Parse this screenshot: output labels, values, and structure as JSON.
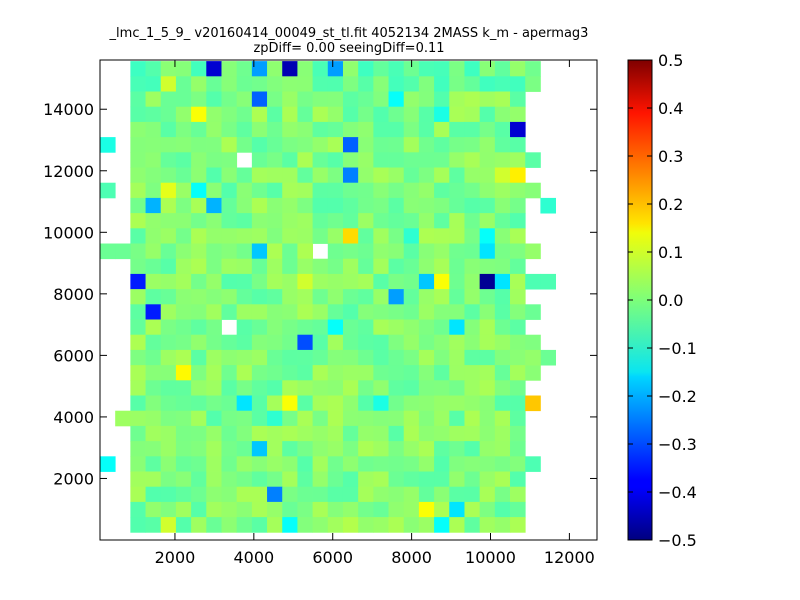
{
  "chart_data": {
    "type": "heatmap",
    "title": "_lmc_1_5_9_ v20160414_00049_st_tl.fit 4052134 2MASS k_m - apermag3",
    "subtitle": "zpDiff= 0.00 seeingDiff=0.11",
    "xlabel": "",
    "ylabel": "",
    "xlim": [
      100,
      12700
    ],
    "ylim": [
      0,
      15600
    ],
    "x_ticks": [
      2000,
      4000,
      6000,
      8000,
      10000,
      12000
    ],
    "x_tick_labels": [
      "2000",
      "4000",
      "6000",
      "8000",
      "10000",
      "12000"
    ],
    "y_ticks": [
      2000,
      4000,
      6000,
      8000,
      10000,
      12000,
      14000
    ],
    "y_tick_labels": [
      "2000",
      "4000",
      "6000",
      "8000",
      "10000",
      "12000",
      "14000"
    ],
    "colorbar": {
      "colormap": "jet",
      "range": [
        -0.5,
        0.5
      ],
      "ticks": [
        -0.5,
        -0.4,
        -0.3,
        -0.2,
        -0.1,
        0.0,
        0.1,
        0.2,
        0.3,
        0.4,
        0.5
      ],
      "tick_labels": [
        "−0.5",
        "−0.4",
        "−0.3",
        "−0.2",
        "−0.1",
        "0.0",
        "0.1",
        "0.2",
        "0.3",
        "0.4",
        "0.5"
      ]
    },
    "grid": false,
    "cell_size": {
      "x": 385,
      "y": 494
    },
    "nx": 32,
    "ny": 31,
    "row_defaults": [
      {
        "row": 30,
        "start_col": 2,
        "end_col": 28,
        "mean": -0.02
      },
      {
        "row": 29,
        "start_col": 2,
        "end_col": 28,
        "mean": -0.02
      },
      {
        "row": 28,
        "start_col": 2,
        "end_col": 27,
        "mean": 0.0
      },
      {
        "row": 27,
        "start_col": 2,
        "end_col": 27,
        "mean": 0.0
      },
      {
        "row": 26,
        "start_col": 2,
        "end_col": 27,
        "mean": 0.0
      },
      {
        "row": 25,
        "start_col": 2,
        "end_col": 27,
        "mean": 0.0
      },
      {
        "row": 24,
        "start_col": 2,
        "end_col": 28,
        "mean": 0.0
      },
      {
        "row": 23,
        "start_col": 2,
        "end_col": 27,
        "mean": 0.0
      },
      {
        "row": 22,
        "start_col": 2,
        "end_col": 28,
        "mean": 0.0
      },
      {
        "row": 21,
        "start_col": 2,
        "end_col": 27,
        "mean": 0.0
      },
      {
        "row": 20,
        "start_col": 2,
        "end_col": 27,
        "mean": 0.0
      },
      {
        "row": 19,
        "start_col": 2,
        "end_col": 27,
        "mean": 0.0
      },
      {
        "row": 18,
        "start_col": 2,
        "end_col": 28,
        "mean": 0.0
      },
      {
        "row": 17,
        "start_col": 2,
        "end_col": 27,
        "mean": 0.0
      },
      {
        "row": 16,
        "start_col": 2,
        "end_col": 27,
        "mean": 0.0
      },
      {
        "row": 15,
        "start_col": 2,
        "end_col": 27,
        "mean": 0.0
      },
      {
        "row": 14,
        "start_col": 2,
        "end_col": 27,
        "mean": 0.0
      },
      {
        "row": 13,
        "start_col": 2,
        "end_col": 27,
        "mean": 0.0
      },
      {
        "row": 12,
        "start_col": 2,
        "end_col": 28,
        "mean": 0.0
      },
      {
        "row": 11,
        "start_col": 2,
        "end_col": 27,
        "mean": 0.0
      },
      {
        "row": 10,
        "start_col": 2,
        "end_col": 28,
        "mean": 0.0
      },
      {
        "row": 9,
        "start_col": 2,
        "end_col": 27,
        "mean": 0.0
      },
      {
        "row": 8,
        "start_col": 2,
        "end_col": 27,
        "mean": 0.0
      },
      {
        "row": 7,
        "start_col": 1,
        "end_col": 27,
        "mean": 0.0
      },
      {
        "row": 6,
        "start_col": 2,
        "end_col": 27,
        "mean": 0.0
      },
      {
        "row": 5,
        "start_col": 2,
        "end_col": 27,
        "mean": 0.0
      },
      {
        "row": 4,
        "start_col": 2,
        "end_col": 27,
        "mean": 0.0
      },
      {
        "row": 3,
        "start_col": 2,
        "end_col": 27,
        "mean": 0.0
      },
      {
        "row": 2,
        "start_col": 2,
        "end_col": 27,
        "mean": 0.0
      },
      {
        "row": 1,
        "start_col": 2,
        "end_col": 27,
        "mean": 0.0
      },
      {
        "row": 0,
        "start_col": 2,
        "end_col": 27,
        "mean": 0.0
      }
    ],
    "special_cells": [
      {
        "col": 0,
        "row": 25,
        "value": -0.1
      },
      {
        "col": 0,
        "row": 22,
        "value": -0.05
      },
      {
        "col": 0,
        "row": 18,
        "value": -0.02
      },
      {
        "col": 1,
        "row": 18,
        "value": -0.02
      },
      {
        "col": 0,
        "row": 4,
        "value": -0.12
      },
      {
        "col": 29,
        "row": 21,
        "value": -0.08
      },
      {
        "col": 29,
        "row": 16,
        "value": -0.05
      },
      {
        "col": 28,
        "row": 16,
        "value": -0.05
      },
      {
        "col": 29,
        "row": 11,
        "value": -0.02
      },
      {
        "col": 28,
        "row": 11,
        "value": 0.02
      },
      {
        "col": 28,
        "row": 8,
        "value": 0.18
      },
      {
        "col": 28,
        "row": 4,
        "value": -0.05
      },
      {
        "col": 28,
        "row": 14,
        "value": -0.02
      },
      {
        "col": 28,
        "row": 12,
        "value": 0.0
      },
      {
        "col": 3,
        "row": 14,
        "value": -0.35
      },
      {
        "col": 7,
        "row": 30,
        "value": -0.42
      },
      {
        "col": 12,
        "row": 30,
        "value": -0.45
      },
      {
        "col": 10,
        "row": 30,
        "value": -0.22
      },
      {
        "col": 15,
        "row": 30,
        "value": -0.22
      },
      {
        "col": 4,
        "row": 29,
        "value": 0.08
      },
      {
        "col": 10,
        "row": 28,
        "value": -0.28
      },
      {
        "col": 19,
        "row": 28,
        "value": -0.12
      },
      {
        "col": 22,
        "row": 27,
        "value": -0.1
      },
      {
        "col": 6,
        "row": 27,
        "value": 0.12
      },
      {
        "col": 27,
        "row": 26,
        "value": -0.42
      },
      {
        "col": 16,
        "row": 25,
        "value": -0.28
      },
      {
        "col": 9,
        "row": 24,
        "value": null
      },
      {
        "col": 16,
        "row": 23,
        "value": -0.25
      },
      {
        "col": 27,
        "row": 23,
        "value": 0.14
      },
      {
        "col": 26,
        "row": 23,
        "value": 0.08
      },
      {
        "col": 4,
        "row": 22,
        "value": 0.1
      },
      {
        "col": 6,
        "row": 22,
        "value": -0.12
      },
      {
        "col": 3,
        "row": 21,
        "value": -0.2
      },
      {
        "col": 7,
        "row": 21,
        "value": -0.2
      },
      {
        "col": 16,
        "row": 19,
        "value": 0.16
      },
      {
        "col": 20,
        "row": 19,
        "value": -0.08
      },
      {
        "col": 25,
        "row": 19,
        "value": -0.12
      },
      {
        "col": 10,
        "row": 18,
        "value": -0.18
      },
      {
        "col": 14,
        "row": 18,
        "value": null
      },
      {
        "col": 25,
        "row": 18,
        "value": -0.15
      },
      {
        "col": 2,
        "row": 16,
        "value": -0.35
      },
      {
        "col": 21,
        "row": 16,
        "value": -0.18
      },
      {
        "col": 22,
        "row": 16,
        "value": 0.12
      },
      {
        "col": 25,
        "row": 16,
        "value": -0.48
      },
      {
        "col": 26,
        "row": 16,
        "value": -0.15
      },
      {
        "col": 13,
        "row": 16,
        "value": 0.08
      },
      {
        "col": 19,
        "row": 15,
        "value": -0.22
      },
      {
        "col": 15,
        "row": 13,
        "value": -0.12
      },
      {
        "col": 8,
        "row": 13,
        "value": null
      },
      {
        "col": 23,
        "row": 13,
        "value": -0.15
      },
      {
        "col": 13,
        "row": 12,
        "value": -0.3
      },
      {
        "col": 5,
        "row": 10,
        "value": 0.13
      },
      {
        "col": 9,
        "row": 8,
        "value": -0.15
      },
      {
        "col": 12,
        "row": 8,
        "value": 0.12
      },
      {
        "col": 18,
        "row": 8,
        "value": -0.1
      },
      {
        "col": 11,
        "row": 7,
        "value": -0.08
      },
      {
        "col": 10,
        "row": 5,
        "value": -0.18
      },
      {
        "col": 11,
        "row": 2,
        "value": -0.25
      },
      {
        "col": 23,
        "row": 1,
        "value": -0.15
      },
      {
        "col": 21,
        "row": 1,
        "value": 0.12
      },
      {
        "col": 4,
        "row": 0,
        "value": 0.08
      },
      {
        "col": 12,
        "row": 0,
        "value": -0.12
      },
      {
        "col": 16,
        "row": 0,
        "value": 0.05
      },
      {
        "col": 22,
        "row": 0,
        "value": -0.12
      }
    ]
  }
}
